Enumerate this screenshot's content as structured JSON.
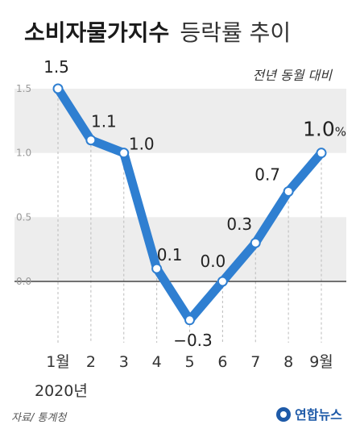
{
  "header": {
    "title_bold": "소비자물가지수",
    "title_rest": "등락률 추이",
    "subtitle": "전년 동월 대비"
  },
  "chart_data": {
    "type": "line",
    "categories": [
      "1월",
      "2",
      "3",
      "4",
      "5",
      "6",
      "7",
      "8",
      "9월"
    ],
    "values": [
      1.5,
      1.1,
      1.0,
      0.1,
      -0.3,
      0.0,
      0.3,
      0.7,
      1.0
    ],
    "data_labels": [
      "1.5",
      "1.1",
      "1.0",
      "0.1",
      "−0.3",
      "0.0",
      "0.3",
      "0.7",
      "1.0"
    ],
    "last_label_unit": "%",
    "year_label": "2020년",
    "ylim": [
      -0.5,
      1.5
    ],
    "yticks": [
      "1.5",
      "1.0",
      "0.5",
      "0.0"
    ],
    "grid": "alternating bands, dashed verticals",
    "colors": {
      "line": "#2f7fd1",
      "marker_fill": "#ffffff",
      "band": "#ededed",
      "zero_line": "#222222"
    }
  },
  "footer": {
    "source": "자료/ 통계청",
    "brand": "연합뉴스"
  }
}
